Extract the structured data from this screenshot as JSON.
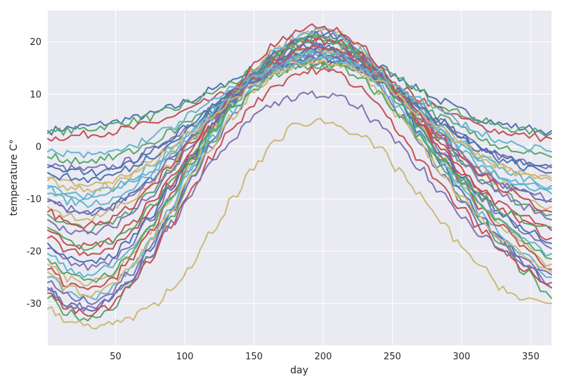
{
  "chart_data": {
    "type": "line",
    "title": "",
    "xlabel": "day",
    "ylabel": "temperature C°",
    "xlim": [
      1,
      365
    ],
    "ylim": [
      -38,
      26
    ],
    "xticks": [
      50,
      100,
      150,
      200,
      250,
      300,
      350
    ],
    "yticks": [
      -30,
      -20,
      -10,
      0,
      10,
      20
    ],
    "grid": true,
    "legend": "none",
    "background": "#EAEAF2",
    "palette": [
      "#4C72B0",
      "#55A868",
      "#C44E52",
      "#8172B2",
      "#CCB974",
      "#64B5CD"
    ],
    "x": [
      1,
      15,
      30,
      45,
      60,
      75,
      90,
      105,
      120,
      135,
      150,
      165,
      180,
      195,
      210,
      225,
      240,
      255,
      270,
      285,
      300,
      315,
      330,
      345,
      365
    ],
    "series": [
      {
        "values": [
          3.0,
          3.5,
          3.9,
          4.5,
          5.3,
          6.1,
          7.4,
          9.0,
          10.8,
          12.8,
          14.8,
          16.6,
          17.9,
          18.4,
          18.1,
          17.0,
          15.3,
          13.2,
          10.9,
          8.7,
          6.8,
          5.3,
          4.2,
          3.5,
          3.0
        ]
      },
      {
        "values": [
          2.5,
          3.0,
          3.4,
          4.0,
          4.8,
          5.6,
          6.9,
          8.5,
          10.3,
          12.3,
          14.3,
          16.1,
          17.4,
          17.9,
          17.6,
          16.5,
          14.8,
          12.7,
          10.4,
          8.2,
          6.3,
          4.8,
          3.7,
          3.0,
          2.5
        ]
      },
      {
        "values": [
          1.5,
          1.9,
          2.3,
          2.8,
          3.4,
          4.3,
          5.6,
          7.2,
          9.0,
          11.0,
          12.9,
          14.6,
          15.8,
          16.3,
          16.0,
          15.0,
          13.4,
          11.4,
          9.2,
          7.1,
          5.3,
          3.8,
          2.8,
          2.1,
          1.5
        ]
      },
      {
        "values": [
          -3.5,
          -4.2,
          -4.5,
          -4.0,
          -2.8,
          -0.8,
          1.6,
          4.4,
          7.5,
          10.5,
          13.1,
          15.2,
          16.6,
          17.1,
          16.8,
          15.5,
          13.4,
          10.7,
          7.7,
          4.7,
          1.9,
          -0.5,
          -2.1,
          -3.0,
          -3.5
        ]
      },
      {
        "values": [
          -6.0,
          -7.0,
          -7.4,
          -6.8,
          -5.2,
          -2.8,
          0.3,
          3.6,
          7.1,
          10.5,
          13.4,
          15.7,
          17.3,
          17.9,
          17.6,
          16.1,
          13.7,
          10.6,
          7.2,
          3.8,
          0.7,
          -2.1,
          -4.0,
          -5.1,
          -6.0
        ]
      },
      {
        "values": [
          -8.0,
          -9.3,
          -9.9,
          -9.1,
          -7.3,
          -4.5,
          -1.0,
          2.8,
          6.7,
          10.4,
          13.6,
          16.2,
          18.0,
          18.7,
          18.4,
          16.7,
          14.1,
          10.7,
          7.0,
          3.2,
          -0.2,
          -3.3,
          -5.5,
          -6.8,
          -8.0
        ]
      },
      {
        "values": [
          -10.5,
          -12.1,
          -12.8,
          -11.9,
          -9.7,
          -6.5,
          -2.5,
          1.8,
          6.2,
          10.3,
          13.9,
          16.7,
          18.7,
          19.5,
          19.1,
          17.3,
          14.4,
          10.6,
          6.5,
          2.3,
          -1.5,
          -4.9,
          -7.3,
          -8.9,
          -10.5
        ]
      },
      {
        "values": [
          -13.0,
          -15.0,
          -15.9,
          -14.9,
          -12.3,
          -8.6,
          -4.1,
          0.8,
          5.6,
          10.2,
          14.1,
          17.2,
          19.4,
          20.3,
          19.9,
          17.9,
          14.7,
          10.5,
          6.0,
          1.4,
          -2.8,
          -6.5,
          -9.2,
          -11.0,
          -13.0
        ]
      },
      {
        "values": [
          -16.0,
          -18.2,
          -19.2,
          -18.1,
          -15.2,
          -11.0,
          -6.0,
          -0.6,
          4.8,
          9.9,
          14.2,
          17.6,
          20.0,
          21.0,
          20.6,
          18.4,
          14.9,
          10.3,
          5.3,
          0.3,
          -4.3,
          -8.4,
          -11.4,
          -13.5,
          -16.0
        ]
      },
      {
        "values": [
          -19.5,
          -22.0,
          -23.1,
          -21.9,
          -18.6,
          -13.8,
          -8.1,
          -2.0,
          4.0,
          9.6,
          14.3,
          18.0,
          20.6,
          21.7,
          21.2,
          18.8,
          15.0,
          10.1,
          4.7,
          -0.7,
          -5.7,
          -10.2,
          -13.6,
          -16.3,
          -19.5
        ]
      },
      {
        "values": [
          -22.5,
          -25.2,
          -26.4,
          -25.1,
          -21.4,
          -16.1,
          -9.8,
          -3.1,
          3.4,
          9.4,
          14.4,
          18.3,
          21.0,
          22.2,
          21.7,
          19.2,
          15.1,
          9.9,
          4.2,
          -1.5,
          -6.8,
          -11.6,
          -15.4,
          -18.7,
          -22.5
        ]
      },
      {
        "values": [
          -25.0,
          -27.8,
          -29.0,
          -27.6,
          -23.7,
          -18.0,
          -11.3,
          -4.2,
          2.6,
          8.8,
          14.0,
          18.1,
          20.9,
          22.1,
          21.6,
          19.0,
          14.8,
          9.4,
          3.5,
          -2.4,
          -7.9,
          -12.9,
          -17.0,
          -20.7,
          -25.0
        ]
      },
      {
        "values": [
          -27.0,
          -29.9,
          -31.1,
          -29.6,
          -25.5,
          -19.6,
          -12.6,
          -5.2,
          1.8,
          8.2,
          13.5,
          17.6,
          20.4,
          21.6,
          21.1,
          18.5,
          14.3,
          8.8,
          2.8,
          -3.2,
          -8.8,
          -13.9,
          -18.3,
          -22.4,
          -27.0
        ]
      },
      {
        "values": [
          -29.0,
          -31.8,
          -32.9,
          -31.3,
          -27.1,
          -21.0,
          -13.8,
          -6.2,
          1.0,
          7.6,
          13.0,
          17.1,
          19.9,
          21.1,
          20.5,
          17.8,
          13.5,
          7.9,
          1.9,
          -4.1,
          -9.7,
          -14.8,
          -19.3,
          -23.8,
          -29.0
        ]
      },
      {
        "values": [
          -17.5,
          -19.8,
          -20.9,
          -19.8,
          -16.7,
          -12.3,
          -7.1,
          -1.6,
          3.9,
          9.0,
          13.4,
          16.8,
          19.2,
          20.2,
          19.8,
          17.6,
          14.1,
          9.6,
          4.6,
          -0.3,
          -4.9,
          -9.0,
          -12.2,
          -14.6,
          -17.5
        ]
      },
      {
        "values": [
          -14.0,
          -15.9,
          -16.8,
          -15.7,
          -13.0,
          -9.2,
          -4.6,
          0.3,
          5.2,
          9.7,
          13.6,
          16.7,
          18.9,
          19.8,
          19.4,
          17.4,
          14.3,
          10.2,
          5.8,
          1.3,
          -2.8,
          -6.4,
          -9.2,
          -11.4,
          -14.0
        ]
      },
      {
        "values": [
          -11.5,
          -13.1,
          -13.8,
          -12.8,
          -10.5,
          -7.2,
          -3.2,
          1.1,
          5.4,
          9.5,
          13.0,
          15.8,
          17.8,
          18.6,
          18.2,
          16.4,
          13.6,
          9.9,
          5.9,
          1.9,
          -1.8,
          -5.0,
          -7.5,
          -9.4,
          -11.5
        ]
      },
      {
        "values": [
          -9.0,
          -10.4,
          -11.0,
          -10.2,
          -8.2,
          -5.3,
          -1.8,
          2.0,
          5.8,
          9.4,
          12.5,
          15.0,
          16.8,
          17.5,
          17.1,
          15.5,
          13.0,
          9.7,
          6.1,
          2.5,
          -0.8,
          -3.7,
          -5.9,
          -7.4,
          -9.0
        ]
      },
      {
        "values": [
          -5.0,
          -5.9,
          -6.3,
          -5.7,
          -4.2,
          -2.0,
          0.7,
          3.7,
          6.8,
          9.7,
          12.2,
          14.3,
          15.7,
          16.3,
          16.0,
          14.7,
          12.7,
          10.1,
          7.2,
          4.3,
          1.6,
          -0.8,
          -2.6,
          -3.9,
          -5.0
        ]
      },
      {
        "values": [
          -2.0,
          -2.5,
          -2.7,
          -2.2,
          -1.1,
          0.6,
          2.8,
          5.2,
          7.7,
          10.1,
          12.2,
          13.9,
          15.1,
          15.6,
          15.3,
          14.2,
          12.6,
          10.4,
          8.0,
          5.6,
          3.4,
          1.4,
          -0.1,
          -1.2,
          -2.0
        ]
      },
      {
        "values": [
          -23.5,
          -26.3,
          -27.5,
          -26.0,
          -22.0,
          -16.4,
          -9.7,
          -2.6,
          4.2,
          10.4,
          15.5,
          19.4,
          22.1,
          23.0,
          22.5,
          19.9,
          15.6,
          10.2,
          4.3,
          -1.6,
          -7.0,
          -11.8,
          -15.6,
          -19.2,
          -23.5
        ]
      },
      {
        "values": [
          -26.0,
          -28.6,
          -29.6,
          -28.2,
          -24.4,
          -19.0,
          -12.7,
          -6.0,
          0.4,
          6.3,
          11.2,
          15.0,
          17.6,
          18.7,
          18.2,
          15.6,
          11.5,
          6.2,
          0.6,
          -5.0,
          -10.2,
          -14.8,
          -18.5,
          -22.0,
          -26.0
        ]
      },
      {
        "values": [
          -24.0,
          -27.0,
          -28.3,
          -27.0,
          -23.4,
          -18.3,
          -12.3,
          -5.9,
          0.2,
          5.8,
          10.4,
          13.9,
          16.3,
          17.2,
          16.8,
          14.4,
          10.6,
          5.8,
          0.5,
          -4.8,
          -9.7,
          -14.1,
          -17.6,
          -20.8,
          -24.0
        ]
      },
      {
        "values": [
          -20.5,
          -23.3,
          -24.5,
          -23.3,
          -20.0,
          -15.3,
          -9.8,
          -3.9,
          1.8,
          7.0,
          11.3,
          14.6,
          16.9,
          17.8,
          17.4,
          15.2,
          11.7,
          7.2,
          2.3,
          -2.6,
          -7.2,
          -11.3,
          -14.6,
          -17.6,
          -20.5
        ]
      },
      {
        "values": [
          -18.5,
          -21.4,
          -22.6,
          -21.3,
          -17.9,
          -13.1,
          -7.6,
          -1.8,
          3.8,
          8.8,
          12.9,
          16.0,
          18.1,
          18.9,
          18.5,
          16.4,
          13.0,
          8.6,
          3.8,
          -1.0,
          -5.5,
          -9.6,
          -12.8,
          -15.8,
          -18.5
        ]
      },
      {
        "values": [
          -15.5,
          -18.3,
          -19.5,
          -18.5,
          -15.6,
          -11.6,
          -6.9,
          -1.9,
          3.0,
          7.4,
          10.9,
          13.5,
          15.2,
          15.8,
          15.5,
          13.5,
          10.4,
          6.4,
          2.1,
          -2.2,
          -6.1,
          -9.6,
          -12.3,
          -14.0,
          -15.5
        ]
      },
      {
        "values": [
          -28.0,
          -31.0,
          -32.3,
          -30.8,
          -27.0,
          -21.5,
          -15.0,
          -8.2,
          -1.8,
          3.9,
          8.3,
          11.6,
          13.8,
          14.6,
          14.1,
          11.6,
          7.8,
          2.9,
          -2.3,
          -7.4,
          -12.0,
          -16.2,
          -19.8,
          -23.5,
          -27.0
        ]
      },
      {
        "values": [
          -27.5,
          -30.0,
          -30.8,
          -29.2,
          -25.5,
          -20.5,
          -14.8,
          -8.8,
          -3.2,
          1.8,
          5.6,
          8.1,
          9.6,
          9.9,
          9.5,
          7.5,
          4.3,
          0.2,
          -4.3,
          -8.8,
          -13.0,
          -16.8,
          -19.9,
          -22.4,
          -24.5
        ]
      },
      {
        "values": [
          -31.0,
          -33.5,
          -34.3,
          -34.0,
          -33.0,
          -30.8,
          -27.5,
          -22.5,
          -16.5,
          -10.0,
          -4.0,
          1.0,
          4.0,
          5.0,
          4.3,
          2.5,
          -0.5,
          -4.5,
          -9.5,
          -14.5,
          -19.0,
          -23.5,
          -27.0,
          -29.5,
          -30.0
        ]
      },
      {
        "values": [
          -7.5,
          -8.8,
          -9.3,
          -8.5,
          -6.6,
          -3.9,
          -0.6,
          3.0,
          6.6,
          10.0,
          13.0,
          15.4,
          17.1,
          17.8,
          17.5,
          16.0,
          13.6,
          10.5,
          7.1,
          3.7,
          0.6,
          -2.2,
          -4.3,
          -6.0,
          -7.5
        ]
      },
      {
        "values": [
          -4.0,
          -4.8,
          -5.1,
          -4.5,
          -3.1,
          -1.0,
          1.6,
          4.5,
          7.5,
          10.3,
          12.8,
          14.8,
          16.2,
          16.8,
          16.5,
          15.2,
          13.2,
          10.6,
          7.8,
          4.9,
          2.2,
          -0.1,
          -1.9,
          -3.1,
          -4.0
        ]
      },
      {
        "values": [
          -21.5,
          -24.4,
          -25.6,
          -24.3,
          -20.7,
          -15.6,
          -9.6,
          -3.2,
          3.0,
          8.7,
          13.4,
          17.0,
          19.5,
          20.5,
          20.1,
          17.7,
          13.9,
          8.9,
          3.6,
          -1.8,
          -6.8,
          -11.2,
          -14.8,
          -18.0,
          -21.5
        ]
      },
      {
        "values": [
          -12.5,
          -14.4,
          -15.2,
          -14.2,
          -11.7,
          -8.1,
          -3.9,
          0.7,
          5.3,
          9.6,
          13.3,
          16.2,
          18.2,
          19.1,
          18.7,
          16.8,
          13.9,
          10.1,
          6.0,
          1.8,
          -2.0,
          -5.4,
          -8.0,
          -10.2,
          -12.5
        ]
      },
      {
        "values": [
          -10.0,
          -12.0,
          -12.9,
          -12.0,
          -9.8,
          -6.6,
          -2.8,
          1.3,
          5.4,
          9.2,
          12.4,
          15.0,
          16.8,
          17.5,
          17.1,
          15.4,
          12.8,
          9.4,
          5.7,
          1.9,
          -1.6,
          -4.8,
          -7.2,
          -8.8,
          -10.0
        ]
      },
      {
        "values": [
          -6.5,
          -7.7,
          -8.2,
          -7.5,
          -5.8,
          -3.4,
          -0.4,
          2.8,
          6.1,
          9.2,
          11.9,
          14.0,
          15.6,
          16.2,
          15.9,
          14.5,
          12.3,
          9.5,
          6.4,
          3.3,
          0.5,
          -2.1,
          -4.0,
          -5.4,
          -6.5
        ]
      },
      {
        "values": [
          -1.0,
          -1.5,
          -1.7,
          -1.2,
          -0.1,
          1.6,
          3.7,
          6.1,
          8.6,
          11.0,
          13.2,
          14.9,
          16.1,
          16.7,
          16.4,
          15.3,
          13.6,
          11.5,
          9.1,
          6.7,
          4.4,
          2.4,
          0.9,
          -0.2,
          -1.0
        ]
      }
    ]
  }
}
